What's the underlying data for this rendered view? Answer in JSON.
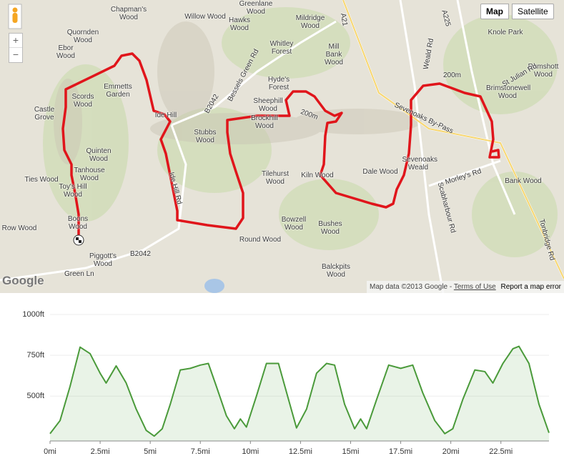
{
  "map": {
    "map_button": "Map",
    "satellite_button": "Satellite",
    "zoom_in": "+",
    "zoom_out": "−",
    "logo": "Google",
    "attribution": "Map data ©2013 Google",
    "terms": "Terms of Use",
    "report": "Report a map error",
    "labels": [
      "Chapman's Wood",
      "Quornden Wood",
      "Ebor Wood",
      "Emmetts Garden",
      "Scords Wood",
      "Castle Grove",
      "Ide Hill",
      "Stubbs Wood",
      "Quinten Wood",
      "Tanhouse Wood",
      "Toy's Hill Wood",
      "Ties Wood",
      "Boons Wood",
      "Row Wood",
      "Piggott's Wood",
      "Willow Wood",
      "Hawks Wood",
      "Greenlane Wood",
      "Whitley Forest",
      "Mildridge Wood",
      "Mill Bank Wood",
      "Hyde's Forest",
      "Sheephill Wood",
      "Brockhill Wood",
      "Tilehurst Wood",
      "Kiln Wood",
      "Bowzell Wood",
      "Bushes Wood",
      "Round Wood",
      "Balckpits Wood",
      "Dale Wood",
      "Sevenoaks Weald",
      "Bank Wood",
      "Knole Park",
      "Rumshott Wood",
      "Brimstonewell Wood"
    ],
    "roads": [
      "B2042",
      "Green Ln",
      "Bessels Green Rd",
      "A21",
      "Sevenoaks By-Pass",
      "Weald Rd",
      "A225",
      "Scabharbour Rd",
      "Morley's Rd",
      "Ide Hill Rd",
      "Tonbridge Rd",
      "St Julian Rd",
      "B2042",
      "200m",
      "200m"
    ]
  },
  "chart_data": {
    "type": "area",
    "x": [
      0,
      0.5,
      1,
      1.5,
      2,
      2.5,
      2.8,
      3.3,
      3.8,
      4.3,
      4.8,
      5.2,
      5.6,
      6.0,
      6.5,
      7.0,
      7.5,
      7.9,
      8.3,
      8.8,
      9.2,
      9.5,
      9.8,
      10.3,
      10.8,
      11.4,
      11.9,
      12.3,
      12.8,
      13.3,
      13.8,
      14.2,
      14.7,
      15.2,
      15.5,
      15.8,
      16.3,
      16.9,
      17.5,
      18.1,
      18.6,
      19.2,
      19.7,
      20.1,
      20.6,
      21.2,
      21.7,
      22.1,
      22.6,
      23.1,
      23.4,
      23.9,
      24.4,
      24.9
    ],
    "series": [
      {
        "color": "#4a9a3a",
        "values": [
          270,
          350,
          560,
          800,
          760,
          640,
          580,
          685,
          580,
          420,
          290,
          255,
          300,
          450,
          660,
          670,
          690,
          700,
          560,
          380,
          300,
          360,
          310,
          500,
          700,
          700,
          480,
          305,
          420,
          640,
          700,
          690,
          450,
          300,
          360,
          300,
          480,
          690,
          670,
          690,
          520,
          350,
          270,
          300,
          480,
          660,
          650,
          580,
          700,
          790,
          805,
          700,
          450,
          275
        ]
      }
    ],
    "xlim": [
      0,
      24.9
    ],
    "ylim": [
      225,
      1000
    ],
    "xticks": [
      {
        "value": 0,
        "label": "0mi"
      },
      {
        "value": 2.5,
        "label": "2.5mi"
      },
      {
        "value": 5,
        "label": "5mi"
      },
      {
        "value": 7.5,
        "label": "7.5mi"
      },
      {
        "value": 10,
        "label": "10mi"
      },
      {
        "value": 12.5,
        "label": "12.5mi"
      },
      {
        "value": 15,
        "label": "15mi"
      },
      {
        "value": 17.5,
        "label": "17.5mi"
      },
      {
        "value": 20,
        "label": "20mi"
      },
      {
        "value": 22.5,
        "label": "22.5mi"
      }
    ],
    "yticks": [
      {
        "value": 500,
        "label": "500ft"
      },
      {
        "value": 750,
        "label": "750ft"
      },
      {
        "value": 1000,
        "label": "1000ft"
      }
    ],
    "grid": true
  }
}
